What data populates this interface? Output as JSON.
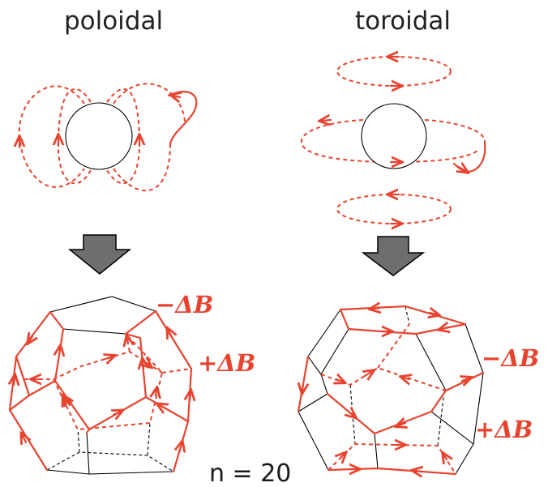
{
  "labels": {
    "poloidal": "poloidal",
    "toroidal": "toroidal",
    "minus_delta_b": "−ΔB",
    "plus_delta_b": "+ΔB",
    "n_value": "n = 20"
  },
  "colors": {
    "field_line": "#e8432f",
    "arrow_fill": "#6e6e6e"
  }
}
